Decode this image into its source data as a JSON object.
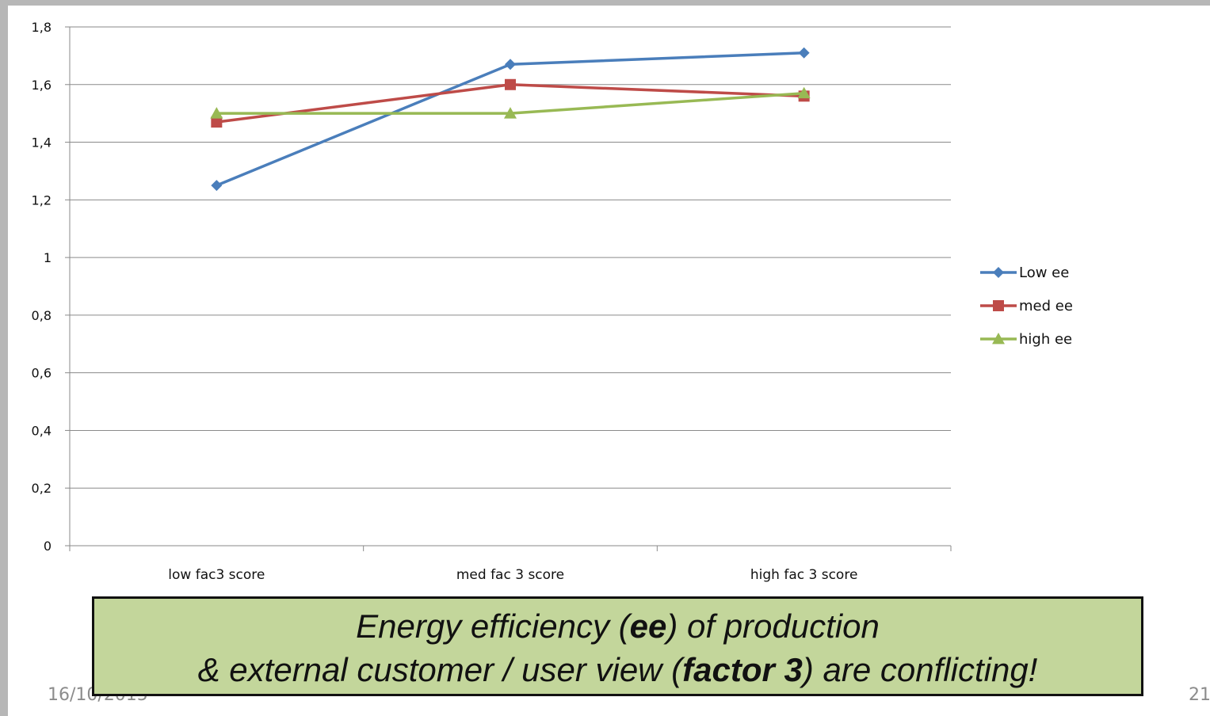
{
  "chart_data": {
    "type": "line",
    "title": "",
    "xlabel": "",
    "ylabel": "",
    "categories": [
      "low fac3 score",
      "med fac 3 score",
      "high fac 3 score"
    ],
    "ylim": [
      0,
      1.8
    ],
    "yticks": [
      "0",
      "0,2",
      "0,4",
      "0,6",
      "0,8",
      "1",
      "1,2",
      "1,4",
      "1,6",
      "1,8"
    ],
    "grid": true,
    "legend_position": "right",
    "series": [
      {
        "name": "Low ee",
        "values": [
          1.25,
          1.67,
          1.71
        ],
        "color": "#4a7ebb",
        "marker": "diamond"
      },
      {
        "name": "med ee",
        "values": [
          1.47,
          1.6,
          1.56
        ],
        "color": "#be4b48",
        "marker": "square"
      },
      {
        "name": "high ee",
        "values": [
          1.5,
          1.5,
          1.57
        ],
        "color": "#98b954",
        "marker": "triangle"
      }
    ]
  },
  "callout": {
    "line1_pre": "Energy efficiency   (",
    "line1_bold": "ee",
    "line1_post": ") of production",
    "line2_pre": "& external customer / user view (",
    "line2_bold": "factor 3",
    "line2_post": ") are conflicting!",
    "background": "#c3d69b"
  },
  "footer": {
    "date": "16/10/2015",
    "page": "21"
  }
}
